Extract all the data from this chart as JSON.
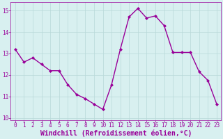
{
  "x": [
    0,
    1,
    2,
    3,
    4,
    5,
    6,
    7,
    8,
    9,
    10,
    11,
    12,
    13,
    14,
    15,
    16,
    17,
    18,
    19,
    20,
    21,
    22,
    23
  ],
  "y": [
    13.2,
    12.6,
    12.8,
    12.5,
    12.2,
    12.2,
    11.55,
    11.1,
    10.9,
    10.65,
    10.4,
    11.55,
    13.2,
    14.7,
    15.1,
    14.65,
    14.75,
    14.3,
    13.05,
    13.05,
    13.05,
    12.15,
    11.75,
    10.65
  ],
  "line_color": "#990099",
  "marker": "D",
  "marker_size": 2,
  "bg_color": "#d8f0f0",
  "grid_color": "#b8d8d8",
  "xlabel": "Windchill (Refroidissement éolien,°C)",
  "xlabel_color": "#990099",
  "xlabel_fontsize": 7,
  "ylim": [
    9.9,
    15.4
  ],
  "xlim": [
    -0.5,
    23.5
  ],
  "yticks": [
    10,
    11,
    12,
    13,
    14,
    15
  ],
  "xticks": [
    0,
    1,
    2,
    3,
    4,
    5,
    6,
    7,
    8,
    9,
    10,
    11,
    12,
    13,
    14,
    15,
    16,
    17,
    18,
    19,
    20,
    21,
    22,
    23
  ],
  "tick_color": "#990099",
  "tick_fontsize": 5.5,
  "spine_color": "#990099",
  "linewidth": 1.0
}
